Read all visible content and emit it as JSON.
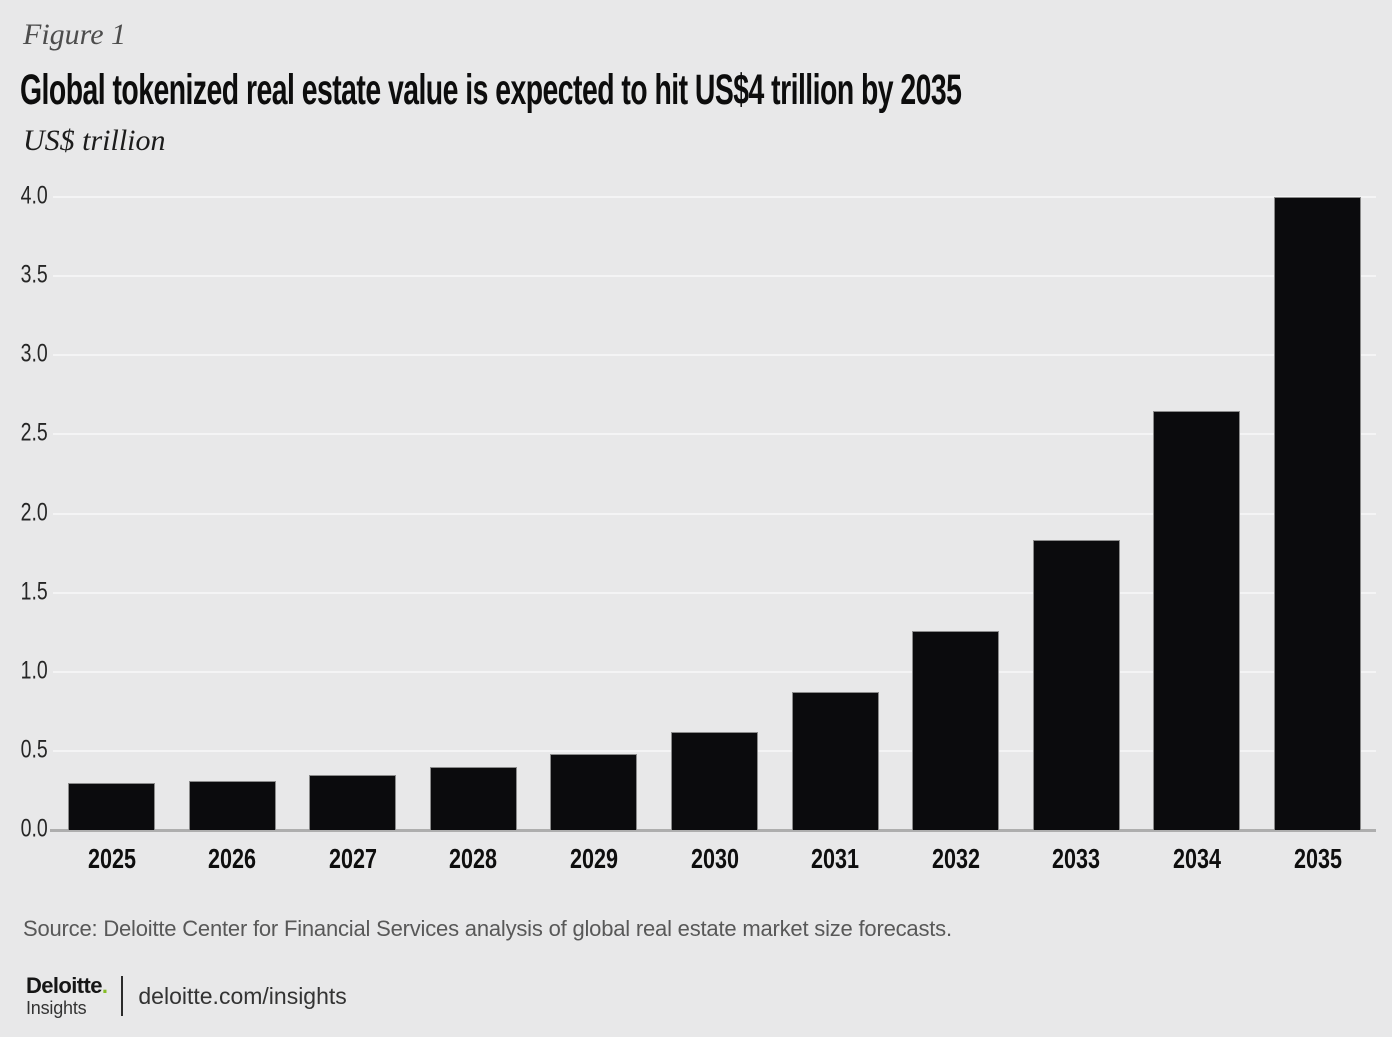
{
  "header": {
    "figure_label": "Figure 1",
    "title": "Global tokenized real estate value is expected to hit US$4 trillion by 2035",
    "unit_label": "US$ trillion"
  },
  "chart_data": {
    "type": "bar",
    "title": "Global tokenized real estate value is expected to hit US$4 trillion by 2035",
    "categories": [
      "2025",
      "2026",
      "2027",
      "2028",
      "2029",
      "2030",
      "2031",
      "2032",
      "2033",
      "2034",
      "2035"
    ],
    "values": [
      0.3,
      0.31,
      0.35,
      0.4,
      0.48,
      0.62,
      0.87,
      1.26,
      1.83,
      2.65,
      4.0
    ],
    "xlabel": "",
    "ylabel": "US$ trillion",
    "ylim": [
      0,
      4.0
    ],
    "yticks": [
      0.0,
      0.5,
      1.0,
      1.5,
      2.0,
      2.5,
      3.0,
      3.5,
      4.0
    ],
    "grid": true,
    "legend": "none",
    "bar_color": "#0b0b0d"
  },
  "footer": {
    "source": "Source: Deloitte Center for Financial Services analysis of global real estate market size forecasts.",
    "logo": {
      "brand": "Deloitte",
      "dot": ".",
      "sub": "Insights"
    },
    "url": "deloitte.com/insights"
  },
  "colors": {
    "background": "#e8e8e9",
    "bar": "#0b0b0d",
    "gridline": "#f4f4f5",
    "baseline": "#aeaeae",
    "accent_green": "#86bc25",
    "title_text": "#0d0d0d",
    "muted_text": "#585858"
  }
}
